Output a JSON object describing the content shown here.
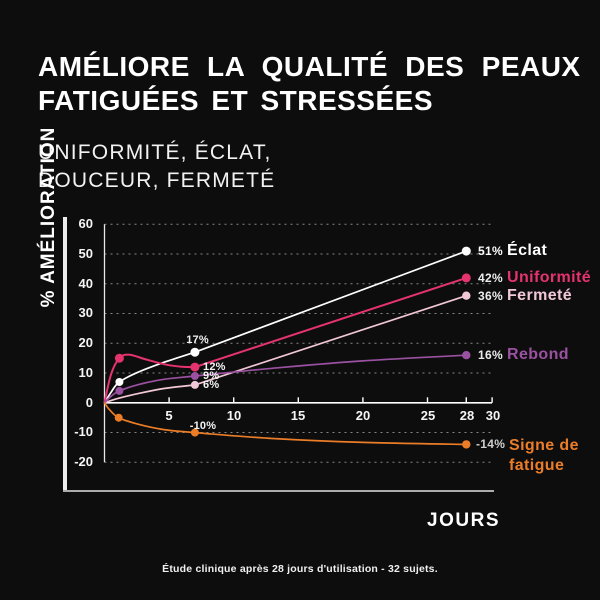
{
  "header": {
    "title_line1": "AMÉLIORE LA QUALITÉ DES PEAUX",
    "title_line2": "FATIGUÉES ET STRESSÉES",
    "subtitle_line1": "UNIFORMITÉ, ÉCLAT,",
    "subtitle_line2": "DOUCEUR, FERMETÉ"
  },
  "footnote": "Étude clinique après 28 jours d'utilisation - 32 sujets.",
  "colors": {
    "background": "#0D0D0D",
    "text": "#FFFFFF",
    "axis": "#FFFFFF",
    "frame": "#ACACAC",
    "eclat": "#FFFFFF",
    "uniformite": "#E5336E",
    "fermete": "#F2C8D9",
    "rebond": "#9B51A1",
    "fatigue": "#EB7D28"
  },
  "chart_data": {
    "type": "line",
    "title": "",
    "xlabel": "JOURS",
    "ylabel": "% AMÉLIORATION",
    "xlim": [
      0,
      30
    ],
    "ylim": [
      -20,
      60
    ],
    "x_ticks": [
      5,
      10,
      15,
      20,
      25,
      28,
      30
    ],
    "y_ticks": [
      60,
      50,
      40,
      30,
      20,
      10,
      0,
      -10,
      -20
    ],
    "grid": "horizontal-dashed",
    "legend_position": "right",
    "series": [
      {
        "name": "Éclat",
        "color": "#FFFFFF",
        "label_day7": "17%",
        "label_day28": "51%",
        "values": {
          "day1": 7,
          "day7": 17,
          "day28": 51
        },
        "draw": {
          "curve": [
            [
              0,
              0
            ],
            [
              0.5,
              3.5
            ],
            [
              1.15,
              7
            ],
            [
              2.6,
              10.3
            ],
            [
              4.6,
              13.6
            ],
            [
              7,
              17
            ]
          ],
          "line": [
            [
              28,
              51
            ]
          ],
          "dots": [
            [
              1.15,
              7,
              4
            ],
            [
              7,
              17,
              4.5
            ],
            [
              28,
              51,
              4.5
            ]
          ],
          "width": 1.7
        }
      },
      {
        "name": "Uniformité",
        "color": "#E5336E",
        "label_day7": "12%",
        "label_day28": "42%",
        "values": {
          "day1": 15,
          "day7": 12,
          "day28": 42
        },
        "draw": {
          "curve": [
            [
              0,
              0
            ],
            [
              0.5,
              9.5
            ],
            [
              1.15,
              15
            ],
            [
              1.9,
              16.2
            ],
            [
              3.2,
              14.6
            ],
            [
              4.8,
              12.8
            ],
            [
              6,
              12.1
            ],
            [
              7,
              12
            ]
          ],
          "line": [
            [
              28,
              42
            ]
          ],
          "dots": [
            [
              1.15,
              15,
              4.5
            ],
            [
              7,
              12,
              4.5
            ],
            [
              28,
              42,
              4.5
            ]
          ],
          "width": 2
        }
      },
      {
        "name": "Fermeté",
        "color": "#F2C8D9",
        "label_day7": "6%",
        "label_day28": "36%",
        "values": {
          "day7": 6,
          "day28": 36
        },
        "draw": {
          "curve": [
            [
              0,
              0
            ],
            [
              1,
              1.4
            ],
            [
              2.6,
              3.1
            ],
            [
              4.6,
              4.8
            ],
            [
              7,
              6
            ]
          ],
          "line": [
            [
              28,
              36
            ]
          ],
          "dots": [
            [
              7,
              6,
              4
            ],
            [
              28,
              36,
              4.2
            ]
          ],
          "width": 1.7
        }
      },
      {
        "name": "Rebond",
        "color": "#9B51A1",
        "label_day7": "9%",
        "label_day28": "16%",
        "values": {
          "day1": 4,
          "day7": 9,
          "day28": 16
        },
        "draw": {
          "curve": [
            [
              0,
              0
            ],
            [
              0.5,
              2.2
            ],
            [
              1.15,
              4
            ],
            [
              2.6,
              6.1
            ],
            [
              4.6,
              7.9
            ],
            [
              7,
              9
            ],
            [
              13,
              11.6
            ],
            [
              20,
              14.1
            ],
            [
              28,
              16
            ]
          ],
          "line": [],
          "dots": [
            [
              1.15,
              4,
              4
            ],
            [
              7,
              9,
              4
            ],
            [
              28,
              16,
              4.2
            ]
          ],
          "width": 1.7
        }
      },
      {
        "name": "Signe de fatigue",
        "name_line1": "Signe de",
        "name_line2": "fatigue",
        "color": "#EB7D28",
        "label_day7": "-10%",
        "label_day28": "-14%",
        "values": {
          "day1": -5,
          "day7": -10,
          "day28": -14
        },
        "draw": {
          "curve": [
            [
              0,
              0
            ],
            [
              0.4,
              -2.4
            ],
            [
              1.1,
              -5
            ],
            [
              2.6,
              -7.2
            ],
            [
              4.6,
              -9
            ],
            [
              7,
              -10
            ],
            [
              13,
              -12
            ],
            [
              20,
              -13.3
            ],
            [
              28,
              -14
            ]
          ],
          "line": [],
          "dots": [
            [
              1.1,
              -5,
              4
            ],
            [
              7,
              -10,
              4
            ],
            [
              28,
              -14,
              4.2
            ]
          ],
          "width": 1.7
        }
      }
    ]
  }
}
